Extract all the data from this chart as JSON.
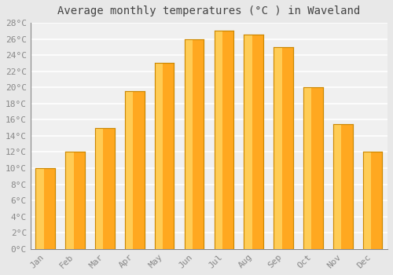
{
  "title": "Average monthly temperatures (°C ) in Waveland",
  "months": [
    "Jan",
    "Feb",
    "Mar",
    "Apr",
    "May",
    "Jun",
    "Jul",
    "Aug",
    "Sep",
    "Oct",
    "Nov",
    "Dec"
  ],
  "values": [
    10,
    12,
    15,
    19.5,
    23,
    26,
    27,
    26.5,
    25,
    20,
    15.5,
    12
  ],
  "bar_color_main": "#FFA820",
  "bar_color_light": "#FFCC55",
  "bar_color_edge": "#CC8800",
  "ylim": [
    0,
    28
  ],
  "yticks": [
    0,
    2,
    4,
    6,
    8,
    10,
    12,
    14,
    16,
    18,
    20,
    22,
    24,
    26,
    28
  ],
  "background_color": "#E8E8E8",
  "plot_bg_color": "#F0F0F0",
  "grid_color": "#FFFFFF",
  "title_fontsize": 10,
  "tick_fontsize": 8,
  "font_family": "monospace",
  "tick_color": "#888888",
  "title_color": "#444444",
  "bar_width": 0.65
}
